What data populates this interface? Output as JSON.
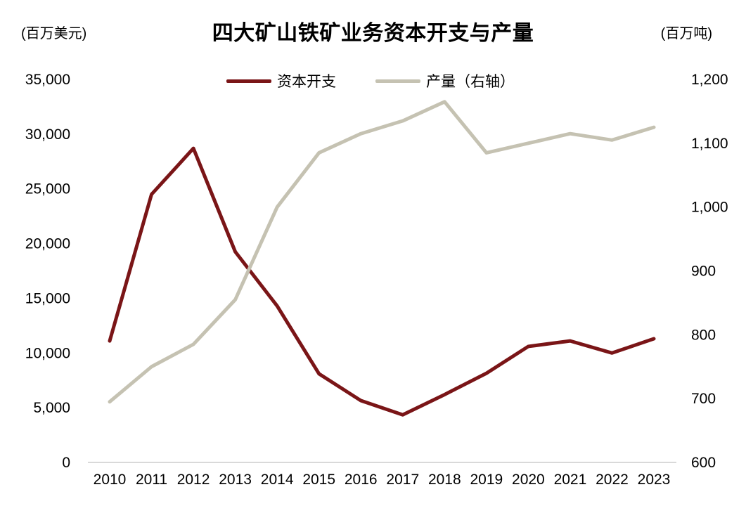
{
  "chart": {
    "title": "四大矿山铁矿业务资本开支与产量",
    "left_unit": "(百万美元)",
    "right_unit": "(百万吨)",
    "colors": {
      "capex": "#7a1517",
      "production": "#c5c2b2",
      "axis_line": "#d9d9d9",
      "text": "#000000",
      "background": "#ffffff"
    }
  },
  "chart_data": {
    "type": "line",
    "title": "四大矿山铁矿业务资本开支与产量",
    "categories": [
      "2010",
      "2011",
      "2012",
      "2013",
      "2014",
      "2015",
      "2016",
      "2017",
      "2018",
      "2019",
      "2020",
      "2021",
      "2022",
      "2023"
    ],
    "series": [
      {
        "name": "资本开支",
        "axis": "left",
        "unit": "百万美元",
        "color_key": "capex",
        "values": [
          11100,
          24500,
          28700,
          19250,
          14300,
          8100,
          5650,
          4350,
          6200,
          8150,
          10600,
          11100,
          10000,
          11300
        ]
      },
      {
        "name": "产量（右轴）",
        "axis": "right",
        "unit": "百万吨",
        "color_key": "production",
        "values": [
          695,
          750,
          785,
          855,
          1000,
          1085,
          1115,
          1135,
          1165,
          1085,
          1100,
          1115,
          1105,
          1125
        ]
      }
    ],
    "left_axis": {
      "min": 0,
      "max": 35000,
      "step": 5000
    },
    "right_axis": {
      "min": 600,
      "max": 1200,
      "step": 100
    },
    "legend_position": "top-center",
    "grid": false,
    "x_axis_line": true
  }
}
